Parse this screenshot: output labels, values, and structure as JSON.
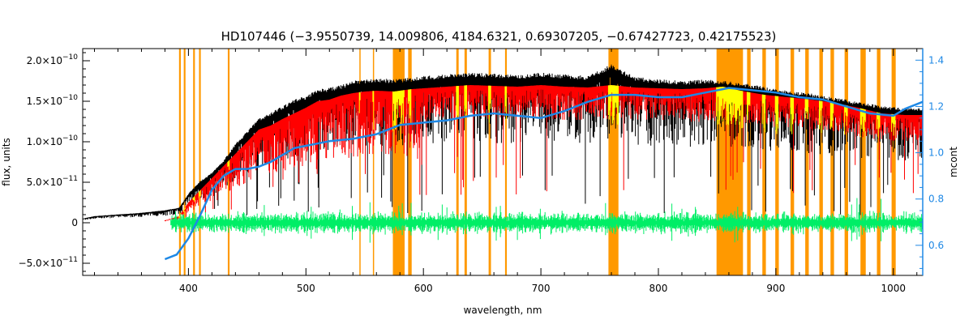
{
  "chart_data": {
    "type": "line",
    "title": "HD107446   (−3.9550739, 14.009806, 4184.6321, 0.69307205, −0.67427723, 0.42175523)",
    "xlabel": "wavelength, nm",
    "ylabel_left": "flux, units",
    "ylabel_right": "mcont",
    "xlim": [
      310,
      1025
    ],
    "ylim_left": [
      -6.5e-11,
      2.15e-10
    ],
    "ylim_right": [
      0.47,
      1.45
    ],
    "x_ticks": [
      400,
      500,
      600,
      700,
      800,
      900,
      1000
    ],
    "y_ticks_left": [
      {
        "value": -5e-11,
        "mant": "−5.0×10",
        "exp": "−11"
      },
      {
        "value": 0,
        "mant": "0",
        "exp": ""
      },
      {
        "value": 5e-11,
        "mant": "5.0×10",
        "exp": "−11"
      },
      {
        "value": 1e-10,
        "mant": "1.0×10",
        "exp": "−10"
      },
      {
        "value": 1.5e-10,
        "mant": "1.5×10",
        "exp": "−10"
      },
      {
        "value": 2e-10,
        "mant": "2.0×10",
        "exp": "−10"
      }
    ],
    "y_ticks_right": [
      "0.6",
      "0.8",
      "1.0",
      "1.2",
      "1.4"
    ],
    "colors": {
      "observed": "#000000",
      "model": "#ff0000",
      "residual": "#00ee66",
      "continuum": "#1e88e5",
      "masked_band": "#ff9900",
      "masked_fill": "#ffff00",
      "right_axis": "#1e88e5"
    },
    "masked_regions_nm": [
      [
        392,
        393.5
      ],
      [
        396,
        397.5
      ],
      [
        404,
        405.5
      ],
      [
        409,
        410.5
      ],
      [
        433.5,
        435
      ],
      [
        545.5,
        546.5
      ],
      [
        557,
        558
      ],
      [
        574,
        584
      ],
      [
        587,
        590
      ],
      [
        628,
        630
      ],
      [
        635,
        637
      ],
      [
        655.5,
        657.5
      ],
      [
        669.5,
        671
      ],
      [
        757.5,
        766
      ],
      [
        849.5,
        872
      ],
      [
        875.5,
        878.5
      ],
      [
        888.5,
        891.5
      ],
      [
        899.5,
        902.5
      ],
      [
        912.5,
        915.5
      ],
      [
        925,
        928
      ],
      [
        937,
        940
      ],
      [
        946.5,
        949.5
      ],
      [
        958.5,
        961.5
      ],
      [
        972,
        976.5
      ],
      [
        986,
        989
      ],
      [
        998.5,
        1002
      ]
    ],
    "observed_flux": {
      "x": [
        310,
        320,
        340,
        360,
        380,
        392,
        400,
        410,
        420,
        430,
        440,
        450,
        460,
        470,
        480,
        490,
        500,
        510,
        520,
        530,
        540,
        550,
        560,
        575,
        590,
        600,
        620,
        640,
        660,
        680,
        700,
        720,
        740,
        760,
        780,
        800,
        820,
        840,
        855,
        870,
        890,
        910,
        930,
        950,
        970,
        990,
        1010,
        1025
      ],
      "y": [
        5e-12,
        8e-12,
        1e-11,
        1.2e-11,
        1.5e-11,
        1.8e-11,
        3.5e-11,
        5e-11,
        6e-11,
        7.5e-11,
        9.5e-11,
        1.1e-10,
        1.25e-10,
        1.32e-10,
        1.4e-10,
        1.48e-10,
        1.52e-10,
        1.6e-10,
        1.62e-10,
        1.65e-10,
        1.7e-10,
        1.72e-10,
        1.73e-10,
        1.72e-10,
        1.74e-10,
        1.76e-10,
        1.78e-10,
        1.8e-10,
        1.79e-10,
        1.77e-10,
        1.8e-10,
        1.78e-10,
        1.76e-10,
        1.9e-10,
        1.75e-10,
        1.72e-10,
        1.7e-10,
        1.72e-10,
        1.7e-10,
        1.68e-10,
        1.63e-10,
        1.58e-10,
        1.55e-10,
        1.5e-10,
        1.45e-10,
        1.4e-10,
        1.38e-10,
        1.38e-10
      ]
    },
    "model_flux": {
      "x": [
        380,
        392,
        400,
        410,
        420,
        430,
        440,
        450,
        460,
        470,
        480,
        490,
        500,
        510,
        520,
        530,
        540,
        550,
        560,
        575,
        590,
        600,
        620,
        640,
        660,
        680,
        700,
        720,
        740,
        760,
        780,
        800,
        820,
        840,
        855,
        870,
        890,
        910,
        930,
        950,
        970,
        990,
        1010,
        1025
      ],
      "y": [
        3e-12,
        8e-12,
        2.5e-11,
        4e-11,
        5.5e-11,
        7e-11,
        8.5e-11,
        1e-10,
        1.15e-10,
        1.2e-10,
        1.28e-10,
        1.35e-10,
        1.42e-10,
        1.5e-10,
        1.52e-10,
        1.57e-10,
        1.6e-10,
        1.62e-10,
        1.63e-10,
        1.62e-10,
        1.65e-10,
        1.66e-10,
        1.68e-10,
        1.7e-10,
        1.69e-10,
        1.68e-10,
        1.7e-10,
        1.68e-10,
        1.67e-10,
        1.7e-10,
        1.67e-10,
        1.66e-10,
        1.65e-10,
        1.66e-10,
        1.68e-10,
        1.63e-10,
        1.58e-10,
        1.55e-10,
        1.52e-10,
        1.48e-10,
        1.42e-10,
        1.35e-10,
        1.33e-10,
        1.33e-10
      ]
    },
    "continuum_mcont": {
      "x": [
        380,
        390,
        400,
        410,
        420,
        430,
        440,
        450,
        460,
        470,
        480,
        490,
        500,
        520,
        540,
        560,
        580,
        600,
        620,
        640,
        660,
        680,
        700,
        720,
        740,
        760,
        780,
        800,
        820,
        840,
        860,
        880,
        900,
        920,
        940,
        960,
        980,
        1000,
        1010,
        1025
      ],
      "y": [
        0.54,
        0.56,
        0.63,
        0.73,
        0.84,
        0.9,
        0.93,
        0.93,
        0.94,
        0.96,
        0.99,
        1.02,
        1.03,
        1.05,
        1.06,
        1.08,
        1.12,
        1.13,
        1.14,
        1.16,
        1.17,
        1.16,
        1.15,
        1.18,
        1.22,
        1.25,
        1.25,
        1.24,
        1.24,
        1.26,
        1.28,
        1.27,
        1.26,
        1.24,
        1.23,
        1.2,
        1.17,
        1.16,
        1.19,
        1.22
      ]
    },
    "residual_band": {
      "x_start": 385,
      "x_end": 1025,
      "center": 0,
      "spread": 1.5e-11
    }
  }
}
